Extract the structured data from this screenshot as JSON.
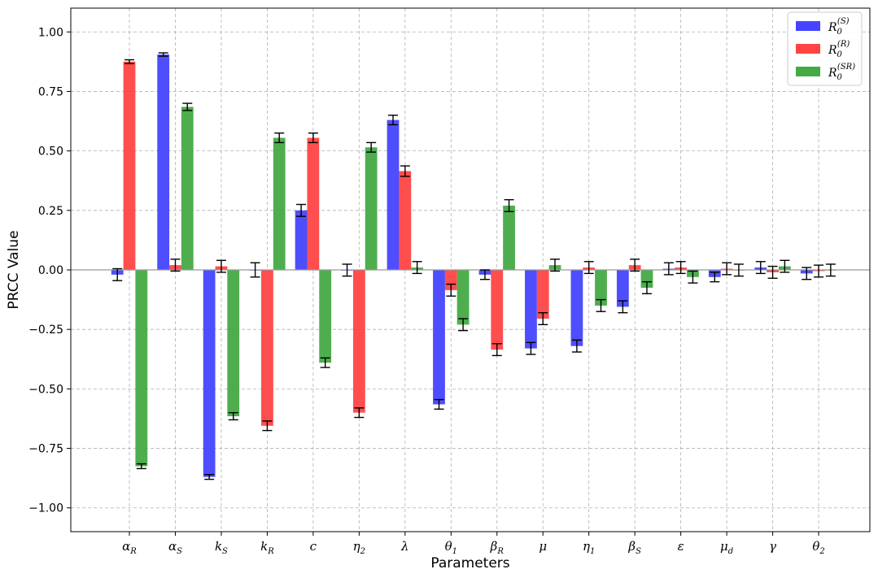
{
  "chart_data": {
    "type": "bar",
    "xlabel": "Parameters",
    "ylabel": "PRCC Value",
    "ylim": [
      -1.1,
      1.1
    ],
    "yticks": [
      -1.0,
      -0.75,
      -0.5,
      -0.25,
      0.0,
      0.25,
      0.5,
      0.75,
      1.0
    ],
    "ytick_labels": [
      "−1.00",
      "−0.75",
      "−0.50",
      "−0.25",
      "0.00",
      "0.25",
      "0.50",
      "0.75",
      "1.00"
    ],
    "grid": true,
    "legend_position": "top-right",
    "categories": [
      {
        "base": "α",
        "sub": "R"
      },
      {
        "base": "α",
        "sub": "S"
      },
      {
        "base": "k",
        "sub": "S"
      },
      {
        "base": "k",
        "sub": "R"
      },
      {
        "base": "c",
        "sub": ""
      },
      {
        "base": "η",
        "sub": "2"
      },
      {
        "base": "λ",
        "sub": ""
      },
      {
        "base": "θ",
        "sub": "1"
      },
      {
        "base": "β",
        "sub": "R"
      },
      {
        "base": "μ",
        "sub": ""
      },
      {
        "base": "η",
        "sub": "1"
      },
      {
        "base": "β",
        "sub": "S"
      },
      {
        "base": "ε",
        "sub": ""
      },
      {
        "base": "μ",
        "sub": "d"
      },
      {
        "base": "γ",
        "sub": ""
      },
      {
        "base": "θ",
        "sub": "2"
      }
    ],
    "series": [
      {
        "name": "R0(S)",
        "label_base": "R",
        "label_sub": "0",
        "label_sup": "(S)",
        "color": "#4444ff",
        "values": [
          -0.02,
          0.905,
          -0.87,
          0.0,
          0.25,
          -0.001,
          0.63,
          -0.565,
          -0.02,
          -0.33,
          -0.32,
          -0.155,
          0.005,
          -0.03,
          0.01,
          -0.015
        ],
        "errors": [
          0.025,
          0.007,
          0.01,
          0.03,
          0.025,
          0.025,
          0.02,
          0.02,
          0.02,
          0.025,
          0.025,
          0.025,
          0.025,
          0.02,
          0.025,
          0.025
        ]
      },
      {
        "name": "R0(R)",
        "label_base": "R",
        "label_sub": "0",
        "label_sup": "(R)",
        "color": "#ff4444",
        "values": [
          0.875,
          0.02,
          0.015,
          -0.655,
          0.555,
          -0.6,
          0.415,
          -0.085,
          -0.335,
          -0.205,
          0.01,
          0.02,
          0.01,
          0.005,
          -0.01,
          -0.005
        ],
        "errors": [
          0.008,
          0.025,
          0.025,
          0.02,
          0.02,
          0.02,
          0.022,
          0.025,
          0.025,
          0.025,
          0.025,
          0.025,
          0.025,
          0.025,
          0.025,
          0.025
        ]
      },
      {
        "name": "R0(SR)",
        "label_base": "R",
        "label_sub": "0",
        "label_sup": "(SR)",
        "color": "#44aa44",
        "values": [
          -0.825,
          0.685,
          -0.615,
          0.555,
          -0.39,
          0.515,
          0.01,
          -0.23,
          0.27,
          0.02,
          -0.15,
          -0.075,
          -0.03,
          -0.001,
          0.015,
          -0.001
        ],
        "errors": [
          0.01,
          0.015,
          0.015,
          0.02,
          0.02,
          0.02,
          0.025,
          0.025,
          0.025,
          0.025,
          0.025,
          0.025,
          0.025,
          0.025,
          0.025,
          0.025
        ]
      }
    ]
  }
}
